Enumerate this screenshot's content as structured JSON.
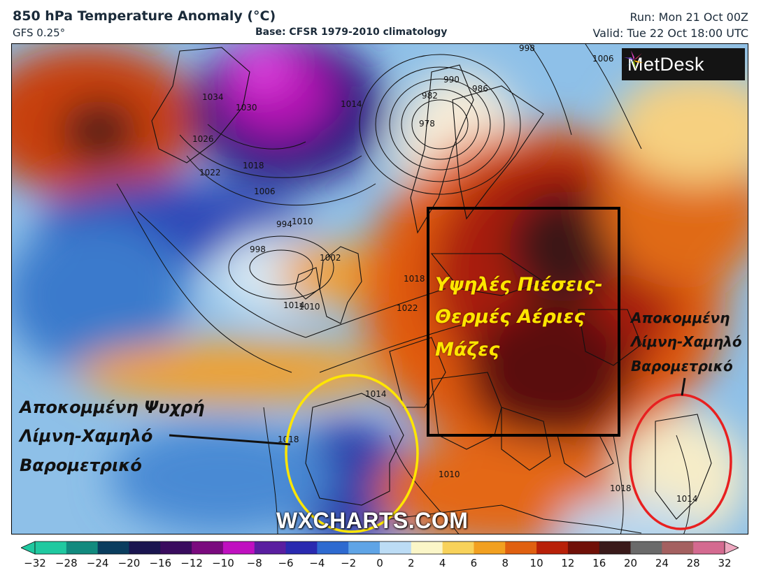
{
  "header": {
    "title": "850 hPa Temperature Anomaly (°C)",
    "model": "GFS 0.25°",
    "base": "Base: CFSR 1979-2010 climatology",
    "run": "Run: Mon 21 Oct 00Z",
    "valid": "Valid: Tue 22 Oct 18:00 UTC"
  },
  "logo": {
    "text": "MetDesk",
    "icon": "metdesk-pinwheel-icon"
  },
  "annotations": {
    "high_pressure": [
      "Υψηλές Πιέσεις-",
      "Θερμές Αέριες",
      "Μάζες"
    ],
    "east_low": [
      "Αποκομμένη",
      "Λίμνη-Χαμηλό",
      "Βαρομετρικό"
    ],
    "west_low": [
      "Αποκομμένη Ψυχρή",
      "Λίμνη-Χαμηλό",
      "Βαρομετρικό"
    ],
    "box_color": "#000000",
    "yellow_ellipse_color": "#ffe600",
    "red_ellipse_color": "#e82020"
  },
  "watermark": "WXCHARTS.COM",
  "isobars": [
    "1034",
    "1030",
    "1026",
    "1022",
    "1018",
    "1014",
    "1010",
    "1006",
    "1002",
    "998",
    "994",
    "990",
    "986",
    "982",
    "978",
    "1018",
    "1022",
    "1018",
    "1014",
    "1010",
    "1014",
    "1010",
    "1018",
    "1014",
    "1006",
    "998"
  ],
  "colorbar": {
    "ticks": [
      "−32",
      "−28",
      "−24",
      "−20",
      "−16",
      "−12",
      "−10",
      "−8",
      "−6",
      "−4",
      "−2",
      "0",
      "2",
      "4",
      "6",
      "8",
      "10",
      "12",
      "16",
      "20",
      "24",
      "28",
      "32"
    ],
    "colors": [
      "#1fc9a0",
      "#118a7e",
      "#0a3d5e",
      "#1a1550",
      "#3a0c5e",
      "#7a0a7e",
      "#c010c0",
      "#5a1ea0",
      "#2a2ab0",
      "#2e6ad0",
      "#5fa4e6",
      "#bcdcf5",
      "#fbf6c8",
      "#f8d25a",
      "#f2a020",
      "#e06010",
      "#b82008",
      "#701008",
      "#3a1a1a",
      "#6a6a6a",
      "#a46060",
      "#d46a90",
      "#eea8c0"
    ]
  }
}
